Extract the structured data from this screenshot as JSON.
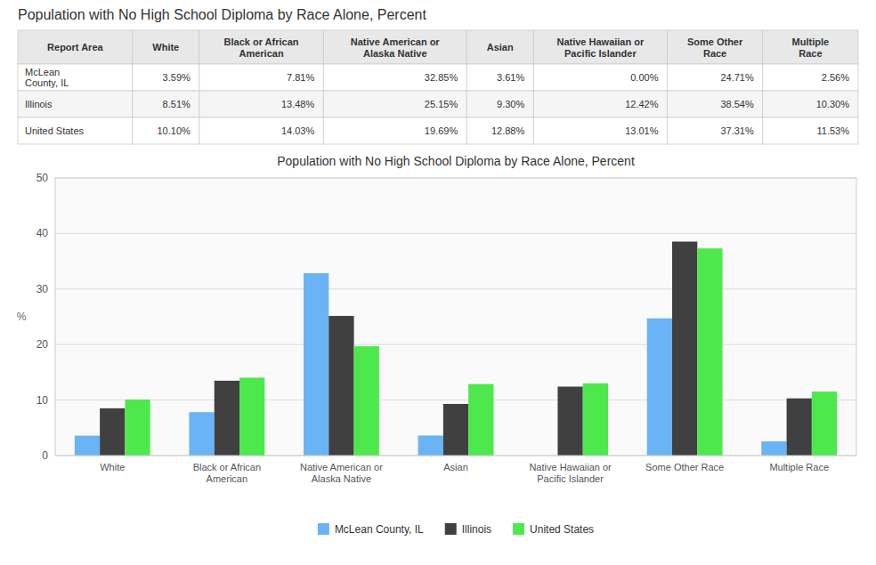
{
  "chart_data": [
    {
      "type": "table",
      "title": "Population with No High School Diploma by Race Alone, Percent",
      "columns": [
        "Report Area",
        "White",
        "Black or African\nAmerican",
        "Native American or\nAlaska Native",
        "Asian",
        "Native Hawaiian or\nPacific Islander",
        "Some Other\nRace",
        "Multiple\nRace"
      ],
      "rows": [
        {
          "name": "McLean\nCounty, IL",
          "values": [
            3.59,
            7.81,
            32.85,
            3.61,
            0.0,
            24.71,
            2.56
          ],
          "value_labels": [
            "3.59%",
            "7.81%",
            "32.85%",
            "3.61%",
            "0.00%",
            "24.71%",
            "2.56%"
          ]
        },
        {
          "name": "Illinois",
          "values": [
            8.51,
            13.48,
            25.15,
            9.3,
            12.42,
            38.54,
            10.3
          ],
          "value_labels": [
            "8.51%",
            "13.48%",
            "25.15%",
            "9.30%",
            "12.42%",
            "38.54%",
            "10.30%"
          ]
        },
        {
          "name": "United States",
          "values": [
            10.1,
            14.03,
            19.69,
            12.88,
            13.01,
            37.31,
            11.53
          ],
          "value_labels": [
            "10.10%",
            "14.03%",
            "19.69%",
            "12.88%",
            "13.01%",
            "37.31%",
            "11.53%"
          ]
        }
      ]
    },
    {
      "type": "bar",
      "title": "Population with No High School Diploma by Race Alone, Percent",
      "y_label": "%",
      "categories": [
        "White",
        "Black or African\nAmerican",
        "Native American or\nAlaska Native",
        "Asian",
        "Native Hawaiian or\nPacific Islander",
        "Some Other Race",
        "Multiple Race"
      ],
      "series": [
        {
          "name": "McLean County, IL",
          "color": "#6ab4f5",
          "values": [
            3.59,
            7.81,
            32.85,
            3.61,
            0.0,
            24.71,
            2.56
          ]
        },
        {
          "name": "Illinois",
          "color": "#404040",
          "values": [
            8.51,
            13.48,
            25.15,
            9.3,
            12.42,
            38.54,
            10.3
          ]
        },
        {
          "name": "United States",
          "color": "#4de94c",
          "values": [
            10.1,
            14.03,
            19.69,
            12.88,
            13.01,
            37.31,
            11.53
          ]
        }
      ],
      "ylim": [
        0,
        50
      ],
      "yticks": [
        0,
        10,
        20,
        30,
        40,
        50
      ],
      "grid": true,
      "legend": "bottom"
    }
  ]
}
